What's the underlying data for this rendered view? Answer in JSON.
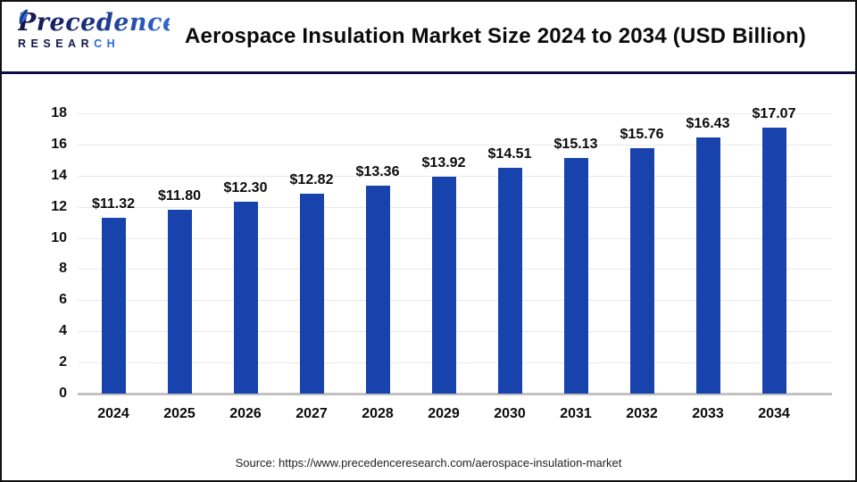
{
  "header": {
    "title": "Aerospace Insulation Market Size 2024 to 2034 (USD Billion)",
    "logo": {
      "name": "Precedence",
      "sub_dark": "RESEAR",
      "sub_light": "CH"
    }
  },
  "chart_data": {
    "type": "bar",
    "title": "Aerospace Insulation Market Size 2024 to 2034 (USD Billion)",
    "categories": [
      "2024",
      "2025",
      "2026",
      "2027",
      "2028",
      "2029",
      "2030",
      "2031",
      "2032",
      "2033",
      "2034"
    ],
    "values": [
      11.32,
      11.8,
      12.3,
      12.82,
      13.36,
      13.92,
      14.51,
      15.13,
      15.76,
      16.43,
      17.07
    ],
    "value_labels": [
      "$11.32",
      "$11.80",
      "$12.30",
      "$12.82",
      "$13.36",
      "$13.92",
      "$14.51",
      "$15.13",
      "$15.76",
      "$16.43",
      "$17.07"
    ],
    "xlabel": "",
    "ylabel": "",
    "ylim": [
      0,
      18
    ],
    "ytick_step": 2,
    "grid": true,
    "legend": "none",
    "bar_color": "#1843ac"
  },
  "footer": {
    "source": "Source: https://www.precedenceresearch.com/aerospace-insulation-market"
  },
  "colors": {
    "bar": "#1843ac",
    "divider": "#0d0d45",
    "gridline": "#e9e9e9",
    "baseline": "#c2c2c2",
    "logo_dark": "#15154e",
    "logo_light": "#2f6ad3"
  }
}
